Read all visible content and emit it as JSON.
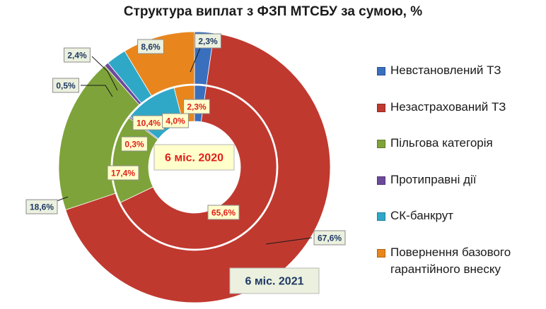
{
  "chart_data": {
    "type": "pie",
    "variant": "nested-donut",
    "title": "Структура виплат з ФЗП МТСБУ за сумою, %",
    "legend_position": "right",
    "categories": [
      "Невстановлений ТЗ",
      "Незастрахований ТЗ",
      "Пільгова категорія",
      "Протиправні дії",
      "СК-банкрут",
      "Повернення базового гарантійного внеску"
    ],
    "colors": [
      "#3a6fbe",
      "#c0392f",
      "#7ea33a",
      "#6c4a9a",
      "#2fa8c8",
      "#e8861d"
    ],
    "series": [
      {
        "name": "6 міс. 2021",
        "ring": "outer",
        "values": [
          2.3,
          67.6,
          18.6,
          0.5,
          2.4,
          8.6
        ],
        "labels": [
          "2,3%",
          "67,6%",
          "18,6%",
          "0,5%",
          "2,4%",
          "8,6%"
        ]
      },
      {
        "name": "6 міс. 2020",
        "ring": "inner",
        "values": [
          2.3,
          65.6,
          17.4,
          0.3,
          10.4,
          4.0
        ],
        "labels": [
          "2,3%",
          "65,6%",
          "17,4%",
          "0,3%",
          "10,4%",
          "4,0%"
        ]
      }
    ]
  },
  "legend": {
    "items": [
      {
        "label": "Невстановлений ТЗ",
        "color": "#3a6fbe"
      },
      {
        "label": "Незастрахований ТЗ",
        "color": "#c0392f"
      },
      {
        "label": "Пільгова категорія",
        "color": "#7ea33a"
      },
      {
        "label": "Протиправні дії",
        "color": "#6c4a9a"
      },
      {
        "label": "СК-банкрут",
        "color": "#2fa8c8"
      },
      {
        "label": "Повернення базового\nгарантійного внеску",
        "color": "#e8861d"
      }
    ]
  },
  "style": {
    "outer_label_bg": "#ebf1de",
    "outer_label_color": "#1f3864",
    "inner_label_bg": "#ffffcc",
    "inner_label_color": "#e0201a"
  }
}
